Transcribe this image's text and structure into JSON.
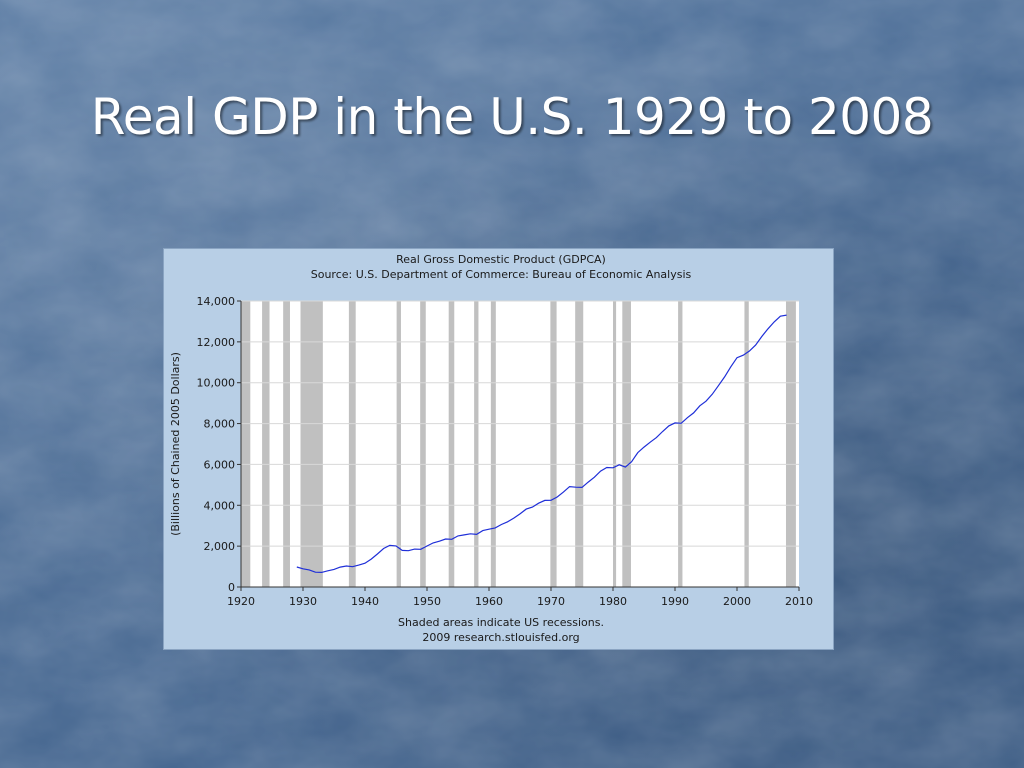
{
  "slide": {
    "title": "Real GDP in the U.S. 1929 to 2008"
  },
  "chart_data": {
    "type": "line",
    "title": "Real Gross Domestic Product (GDPCA)",
    "subtitle": "Source: U.S. Department of Commerce: Bureau of Economic Analysis",
    "xlabel": "",
    "ylabel": "(Billions of Chained 2005 Dollars)",
    "xlim": [
      1920,
      2010
    ],
    "ylim": [
      0,
      14000
    ],
    "xticks": [
      "1920",
      "1930",
      "1940",
      "1950",
      "1960",
      "1970",
      "1980",
      "1990",
      "2000",
      "2010"
    ],
    "yticks": [
      "0",
      "2,000",
      "4,000",
      "6,000",
      "8,000",
      "10,000",
      "12,000",
      "14,000"
    ],
    "grid": "horizontal",
    "line_color": "#1f2fd8",
    "recession_color": "#c0c0c0",
    "recessions": [
      [
        1920.0,
        1921.5
      ],
      [
        1923.4,
        1924.6
      ],
      [
        1926.8,
        1927.9
      ],
      [
        1929.6,
        1933.2
      ],
      [
        1937.4,
        1938.5
      ],
      [
        1945.1,
        1945.8
      ],
      [
        1948.9,
        1949.8
      ],
      [
        1953.5,
        1954.4
      ],
      [
        1957.6,
        1958.3
      ],
      [
        1960.3,
        1961.1
      ],
      [
        1969.9,
        1970.9
      ],
      [
        1973.9,
        1975.2
      ],
      [
        1980.0,
        1980.5
      ],
      [
        1981.5,
        1982.9
      ],
      [
        1990.5,
        1991.2
      ],
      [
        2001.2,
        2001.9
      ],
      [
        2007.9,
        2009.5
      ]
    ],
    "series": [
      {
        "x": [
          1929,
          1930,
          1931,
          1932,
          1933,
          1934,
          1935,
          1936,
          1937,
          1938,
          1939,
          1940,
          1941,
          1942,
          1943,
          1944,
          1945,
          1946,
          1947,
          1948,
          1949,
          1950,
          1951,
          1952,
          1953,
          1954,
          1955,
          1956,
          1957,
          1958,
          1959,
          1960,
          1961,
          1962,
          1963,
          1964,
          1965,
          1966,
          1967,
          1968,
          1969,
          1970,
          1971,
          1972,
          1973,
          1974,
          1975,
          1976,
          1977,
          1978,
          1979,
          1980,
          1981,
          1982,
          1983,
          1984,
          1985,
          1986,
          1987,
          1988,
          1989,
          1990,
          1991,
          1992,
          1993,
          1994,
          1995,
          1996,
          1997,
          1998,
          1999,
          2000,
          2001,
          2002,
          2003,
          2004,
          2005,
          2006,
          2007,
          2008
        ],
        "y": [
          977,
          892,
          835,
          726,
          716,
          792,
          863,
          975,
          1026,
          992,
          1072,
          1167,
          1366,
          1617,
          1883,
          2035,
          2012,
          1793,
          1776,
          1855,
          1845,
          2006,
          2161,
          2244,
          2348,
          2335,
          2500,
          2550,
          2602,
          2577,
          2762,
          2831,
          2894,
          3061,
          3190,
          3373,
          3580,
          3815,
          3909,
          4101,
          4239,
          4246,
          4408,
          4645,
          4914,
          4885,
          4875,
          5137,
          5373,
          5672,
          5850,
          5834,
          5983,
          5870,
          6136,
          6577,
          6849,
          7086,
          7313,
          7614,
          7886,
          8034,
          8015,
          8287,
          8523,
          8871,
          9094,
          9434,
          9854,
          10284,
          10780,
          11226,
          11347,
          11553,
          11841,
          12264,
          12638,
          12976,
          13254,
          13312
        ]
      }
    ],
    "footnote_1": "Shaded areas indicate US recessions.",
    "footnote_2": "2009 research.stlouisfed.org"
  }
}
